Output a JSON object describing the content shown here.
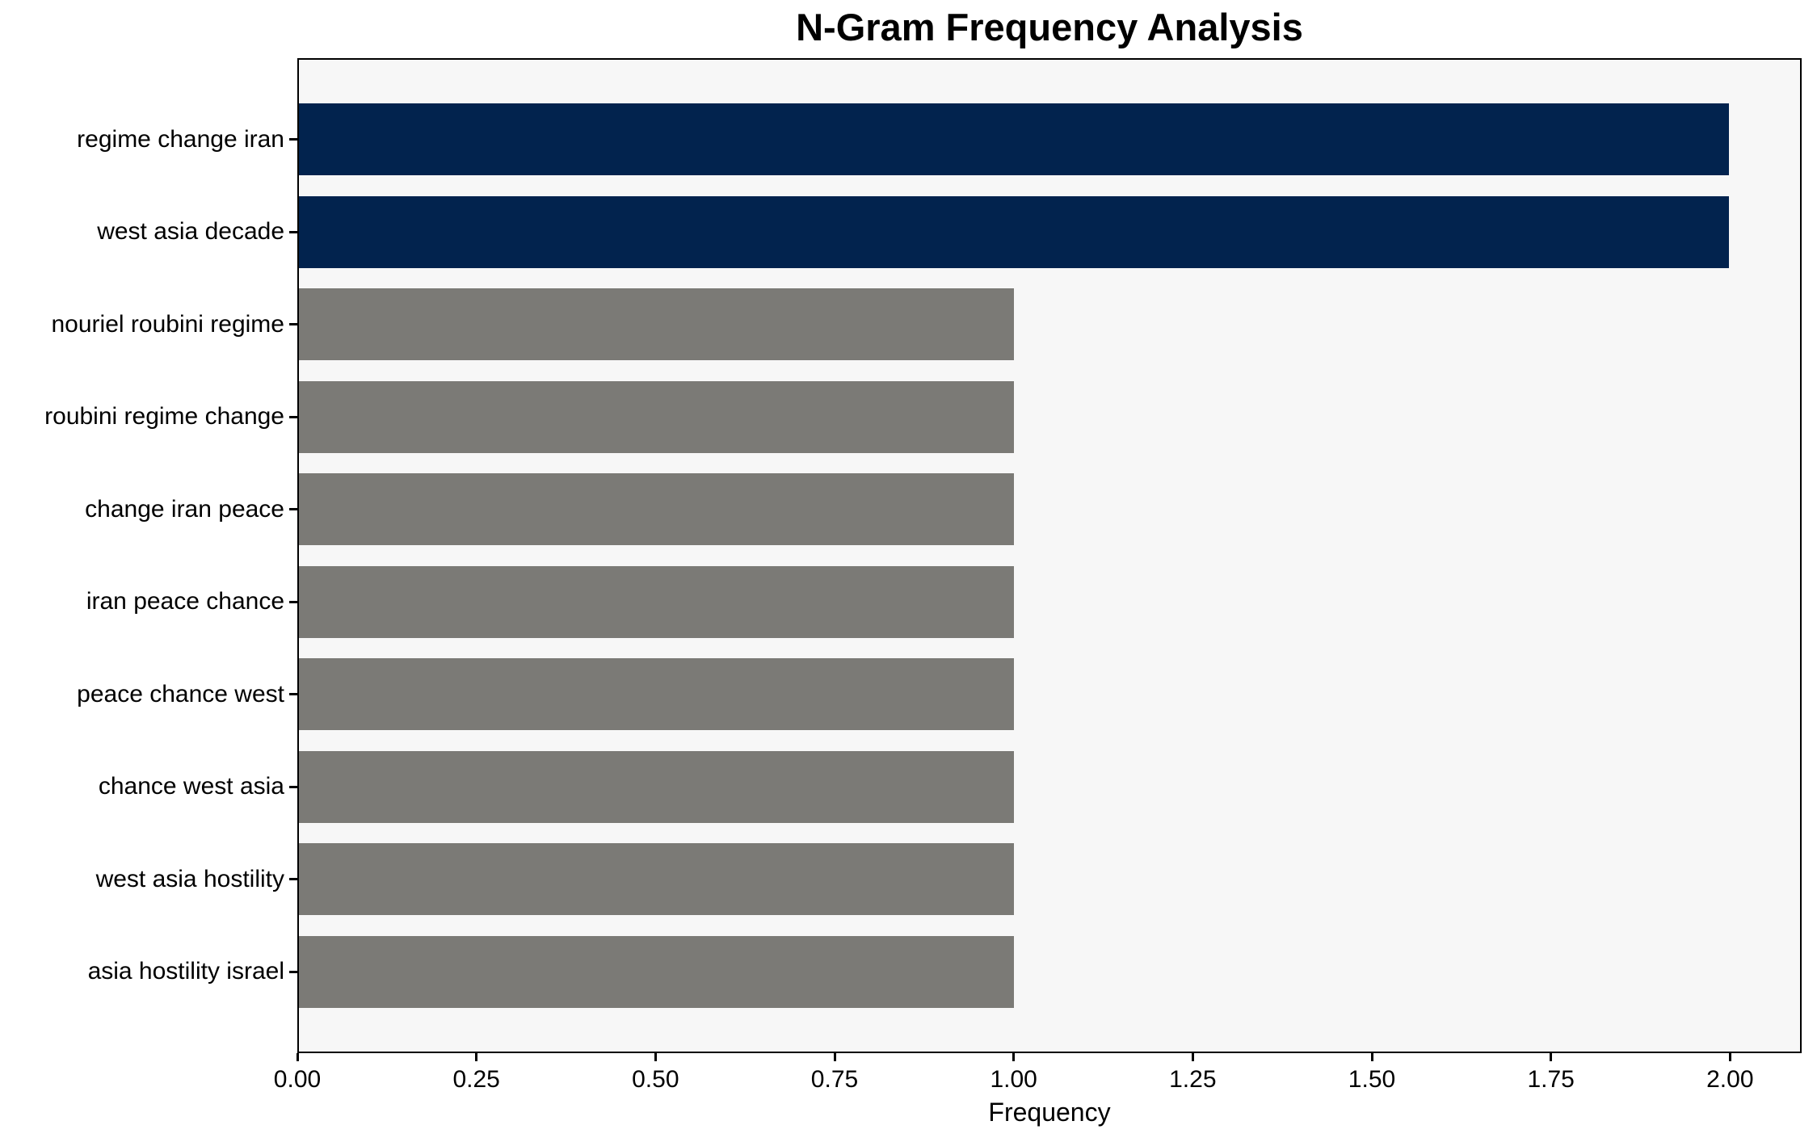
{
  "chart_data": {
    "type": "bar",
    "orientation": "horizontal",
    "title": "N-Gram Frequency Analysis",
    "xlabel": "Frequency",
    "ylabel": "",
    "categories": [
      "regime change iran",
      "west asia decade",
      "nouriel roubini regime",
      "roubini regime change",
      "change iran peace",
      "iran peace chance",
      "peace chance west",
      "chance west asia",
      "west asia hostility",
      "asia hostility israel"
    ],
    "values": [
      2,
      2,
      1,
      1,
      1,
      1,
      1,
      1,
      1,
      1
    ],
    "bar_colors": [
      "#02234e",
      "#02234e",
      "#7b7a76",
      "#7b7a76",
      "#7b7a76",
      "#7b7a76",
      "#7b7a76",
      "#7b7a76",
      "#7b7a76",
      "#7b7a76"
    ],
    "xlim": [
      0,
      2.1
    ],
    "xticks": [
      0,
      0.25,
      0.5,
      0.75,
      1.0,
      1.25,
      1.5,
      1.75,
      2.0
    ],
    "xtick_labels": [
      "0.00",
      "0.25",
      "0.50",
      "0.75",
      "1.00",
      "1.25",
      "1.50",
      "1.75",
      "2.00"
    ],
    "grid": false,
    "legend_position": "none",
    "colors": {
      "highlight": "#02234e",
      "default": "#7b7a76",
      "plot_background": "#f7f7f7",
      "figure_background": "#ffffff",
      "spine": "#000000",
      "text": "#000000"
    }
  }
}
